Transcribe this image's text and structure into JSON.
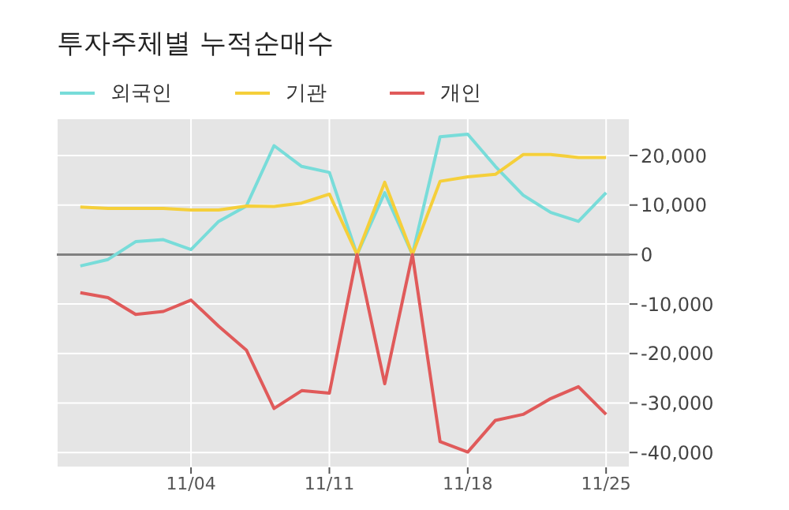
{
  "chart_data": {
    "type": "line",
    "title": "투자주체별 누적순매수",
    "categories": [
      null,
      null,
      null,
      null,
      "11/04",
      null,
      null,
      null,
      null,
      "11/11",
      null,
      null,
      null,
      null,
      "11/18",
      null,
      null,
      null,
      null,
      "11/25"
    ],
    "series": [
      {
        "name": "외국인",
        "color": "#78dcd9",
        "values": [
          -2300,
          -1000,
          2600,
          3000,
          1000,
          6700,
          9800,
          22000,
          17800,
          16600,
          0,
          12500,
          0,
          23800,
          24300,
          17800,
          12000,
          8500,
          6700,
          12500
        ]
      },
      {
        "name": "기관",
        "color": "#f5cf3a",
        "values": [
          9600,
          9300,
          9300,
          9300,
          9000,
          9000,
          9800,
          9700,
          10400,
          12200,
          0,
          14600,
          0,
          14800,
          15700,
          16200,
          20200,
          20200,
          19600,
          19600
        ]
      },
      {
        "name": "개인",
        "color": "#e05a5a",
        "values": [
          -7700,
          -8700,
          -12100,
          -11500,
          -9200,
          -14500,
          -19300,
          -31100,
          -27500,
          -28000,
          0,
          -26100,
          0,
          -37800,
          -39900,
          -33500,
          -32300,
          -29100,
          -26700,
          -32300
        ]
      }
    ],
    "ylim": [
      -43000,
      27500
    ],
    "yticks": [
      {
        "value": -40000,
        "label": "-40,000"
      },
      {
        "value": -30000,
        "label": "-30,000"
      },
      {
        "value": -20000,
        "label": "-20,000"
      },
      {
        "value": -10000,
        "label": "-10,000"
      },
      0,
      {
        "value": 10000,
        "label": "10,000"
      },
      {
        "value": 20000,
        "label": "20,000"
      }
    ],
    "ref_lines": [
      {
        "axis": "y",
        "value": 0,
        "color": "#808080"
      }
    ],
    "grid": true,
    "legend": "top left",
    "marker": "none",
    "line_style": "solid"
  }
}
